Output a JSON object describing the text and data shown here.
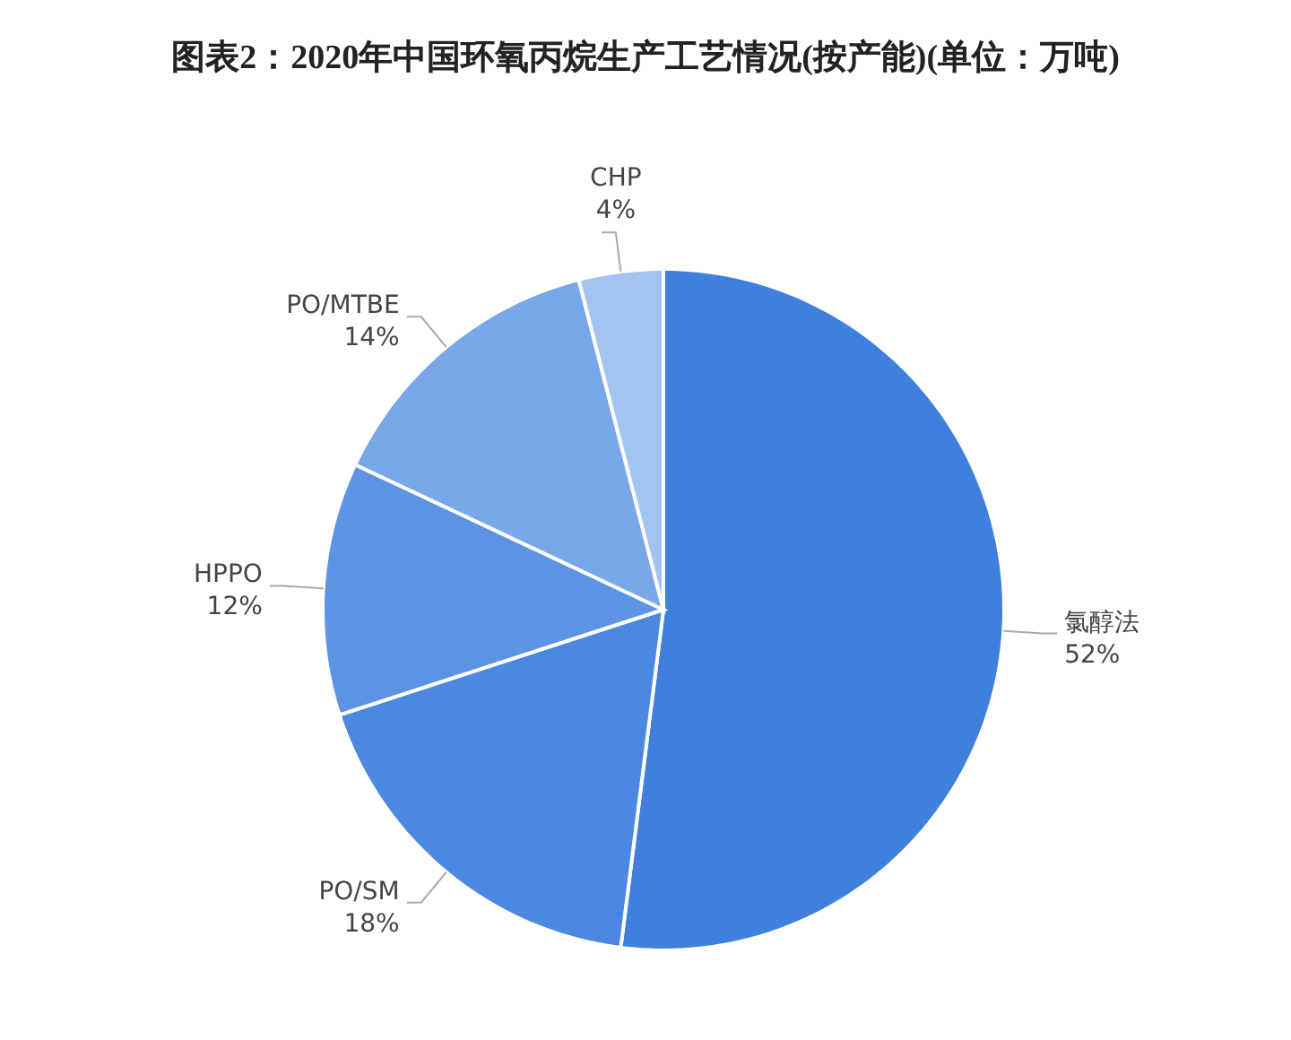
{
  "chart_data": {
    "type": "pie",
    "title": "图表2：2020年中国环氧丙烷生产工艺情况(按产能)(单位：万吨)",
    "categories": [
      "氯醇法",
      "PO/SM",
      "HPPO",
      "PO/MTBE",
      "CHP"
    ],
    "values": [
      52,
      18,
      12,
      14,
      4
    ],
    "value_labels": [
      "52%",
      "18%",
      "12%",
      "14%",
      "4%"
    ],
    "colors": [
      "#3f80dc",
      "#4b88df",
      "#5c94e3",
      "#78a8e9",
      "#a3c4f0"
    ]
  }
}
